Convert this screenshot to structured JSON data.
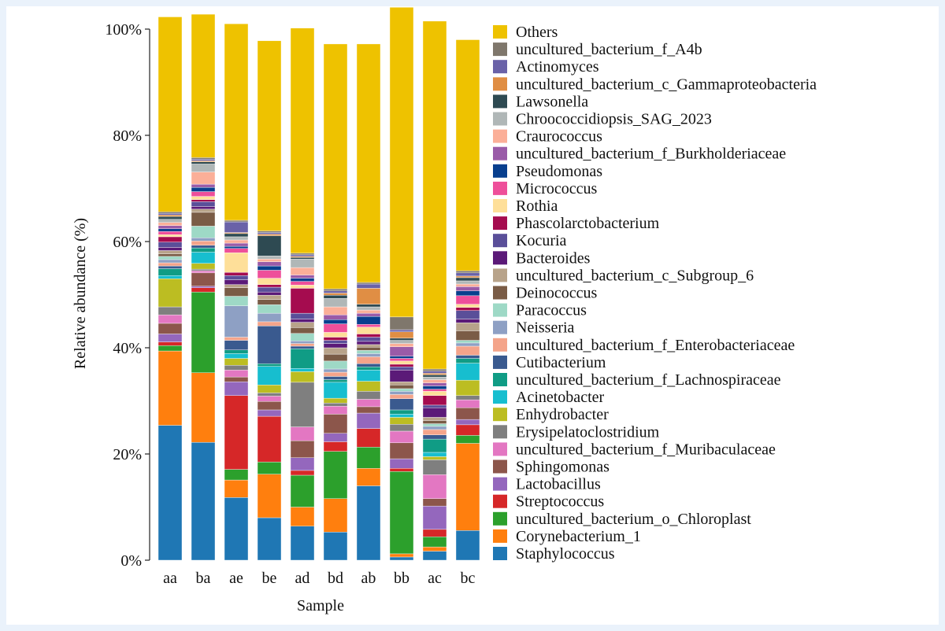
{
  "colors": {
    "Staphylococcus": "#1f77b4",
    "Corynebacterium_1": "#ff7f0e",
    "uncultured_bacterium_o_Chloroplast": "#2ca02c",
    "Streptococcus": "#d62728",
    "Lactobacillus": "#9467bd",
    "Sphingomonas": "#8c564b",
    "uncultured_bacterium_f_Muribaculaceae": "#e377c2",
    "Erysipelatoclostridium": "#7f7f7f",
    "Enhydrobacter": "#bcbd22",
    "Acinetobacter": "#17becf",
    "uncultured_bacterium_f_Lachnospiraceae": "#109c85",
    "Cutibacterium": "#3a5a8f",
    "uncultured_bacterium_f_Enterobacteriaceae": "#f4a48a",
    "Neisseria": "#8ea0c4",
    "Paracoccus": "#9ed9c6",
    "Deinococcus": "#7a5c46",
    "uncultured_bacterium_c_Subgroup_6": "#b8a38a",
    "Bacteroides": "#5b1a78",
    "Kocuria": "#5a4f99",
    "Phascolarctobacterium": "#a50c4f",
    "Rothia": "#fedf99",
    "Micrococcus": "#ee4f9a",
    "Pseudomonas": "#083f8e",
    "uncultured_bacterium_f_Burkholderiaceae": "#9a5ba8",
    "Craurococcus": "#fbaf98",
    "Chroococcidiopsis_SAG_2023": "#b0b7b7",
    "Lawsonella": "#2e4a52",
    "uncultured_bacterium_c_Gammaproteobacteria": "#e08e44",
    "Actinomyces": "#6a62a8",
    "uncultured_bacterium_f_A4b": "#7f776c",
    "Others": "#eec200"
  },
  "chart_data": {
    "type": "bar",
    "stacked": true,
    "xlabel": "Sample",
    "ylabel": "Relative abundance (%)",
    "ylim": [
      0,
      100
    ],
    "yticks": [
      "0%",
      "20%",
      "40%",
      "60%",
      "80%",
      "100%"
    ],
    "legend_position": "right",
    "categories": [
      "aa",
      "ba",
      "ae",
      "be",
      "ad",
      "bd",
      "ab",
      "bb",
      "ac",
      "bc"
    ],
    "series": [
      {
        "name": "Staphylococcus",
        "values": [
          25.4,
          22.2,
          11.8,
          8.0,
          6.4,
          5.3,
          14.0,
          0.6,
          1.7,
          5.6
        ]
      },
      {
        "name": "Corynebacterium_1",
        "values": [
          14.0,
          13.1,
          3.3,
          8.2,
          3.6,
          6.3,
          3.3,
          0.6,
          0.8,
          16.4
        ]
      },
      {
        "name": "uncultured_bacterium_o_Chloroplast",
        "values": [
          1.0,
          15.2,
          2.0,
          2.3,
          6.0,
          8.9,
          4.0,
          15.5,
          1.9,
          1.5
        ]
      },
      {
        "name": "Streptococcus",
        "values": [
          0.7,
          0.8,
          13.9,
          8.6,
          0.9,
          1.8,
          3.5,
          0.6,
          1.4,
          2.0
        ]
      },
      {
        "name": "Lactobacillus",
        "values": [
          1.5,
          0.3,
          2.6,
          1.2,
          2.4,
          1.6,
          2.9,
          1.8,
          4.4,
          1.0
        ]
      },
      {
        "name": "Sphingomonas",
        "values": [
          2.0,
          2.5,
          0.9,
          1.6,
          3.2,
          3.6,
          1.2,
          3.0,
          1.4,
          2.2
        ]
      },
      {
        "name": "uncultured_bacterium_f_Muribaculaceae",
        "values": [
          1.6,
          0.4,
          1.3,
          1.0,
          2.6,
          1.5,
          1.4,
          2.2,
          4.5,
          1.5
        ]
      },
      {
        "name": "Erysipelatoclostridium",
        "values": [
          1.5,
          0.3,
          0.9,
          0.6,
          8.4,
          0.6,
          1.5,
          1.3,
          2.8,
          0.8
        ]
      },
      {
        "name": "Enhydrobacter",
        "values": [
          5.3,
          1.1,
          1.3,
          1.5,
          2.0,
          0.9,
          1.9,
          1.3,
          0.6,
          2.9
        ]
      },
      {
        "name": "Acinetobacter",
        "values": [
          0.6,
          2.1,
          0.9,
          3.5,
          0.6,
          3.0,
          2.1,
          0.6,
          0.8,
          3.2
        ]
      },
      {
        "name": "uncultured_bacterium_f_Lachnospiraceae",
        "values": [
          1.3,
          0.8,
          0.7,
          0.5,
          3.7,
          0.5,
          0.6,
          0.8,
          2.5,
          0.9
        ]
      },
      {
        "name": "Cutibacterium",
        "values": [
          0.5,
          0.5,
          1.8,
          7.1,
          0.5,
          0.6,
          0.6,
          2.1,
          0.8,
          0.6
        ]
      },
      {
        "name": "uncultured_bacterium_f_Enterobacteriaceae",
        "values": [
          0.6,
          0.8,
          0.6,
          0.8,
          0.5,
          0.8,
          1.3,
          0.8,
          1.0,
          1.7
        ]
      },
      {
        "name": "Neisseria",
        "values": [
          0.6,
          0.6,
          5.9,
          1.6,
          0.5,
          0.6,
          0.6,
          0.6,
          0.6,
          0.6
        ]
      },
      {
        "name": "Paracoccus",
        "values": [
          0.6,
          2.2,
          1.8,
          1.6,
          1.4,
          1.5,
          0.6,
          0.5,
          0.5,
          0.5
        ]
      },
      {
        "name": "Deinococcus",
        "values": [
          0.5,
          2.6,
          1.6,
          1.0,
          1.1,
          1.3,
          0.6,
          0.7,
          0.6,
          1.8
        ]
      },
      {
        "name": "uncultured_bacterium_c_Subgroup_6",
        "values": [
          0.6,
          0.6,
          0.6,
          0.8,
          1.0,
          1.2,
          0.5,
          0.6,
          0.6,
          1.5
        ]
      },
      {
        "name": "Bacteroides",
        "values": [
          0.6,
          0.5,
          0.9,
          0.6,
          0.6,
          0.8,
          0.6,
          2.2,
          1.8,
          0.7
        ]
      },
      {
        "name": "Kocuria",
        "values": [
          1.0,
          0.9,
          0.8,
          0.9,
          1.1,
          0.6,
          0.8,
          0.6,
          0.5,
          1.6
        ]
      },
      {
        "name": "Phascolarctobacterium",
        "values": [
          1.0,
          0.4,
          0.6,
          0.5,
          4.7,
          0.6,
          0.6,
          0.5,
          1.8,
          0.6
        ]
      },
      {
        "name": "Rothia",
        "values": [
          0.4,
          0.6,
          3.7,
          1.2,
          0.6,
          0.9,
          1.3,
          0.6,
          0.8,
          0.6
        ]
      },
      {
        "name": "Micrococcus",
        "values": [
          0.6,
          0.9,
          0.8,
          1.5,
          0.7,
          1.6,
          0.5,
          0.5,
          0.4,
          1.6
        ]
      },
      {
        "name": "Pseudomonas",
        "values": [
          0.5,
          0.8,
          0.4,
          0.8,
          0.6,
          0.8,
          1.5,
          0.4,
          0.6,
          0.9
        ]
      },
      {
        "name": "uncultured_bacterium_f_Burkholderiaceae",
        "values": [
          0.6,
          0.6,
          0.6,
          0.8,
          0.6,
          0.9,
          0.6,
          1.8,
          0.6,
          0.8
        ]
      },
      {
        "name": "Craurococcus",
        "values": [
          0.6,
          2.3,
          0.6,
          0.5,
          1.4,
          1.5,
          0.6,
          0.6,
          0.6,
          0.5
        ]
      },
      {
        "name": "Chroococcidiopsis_SAG_2023",
        "values": [
          0.6,
          1.5,
          0.6,
          0.6,
          1.6,
          1.6,
          0.6,
          0.6,
          0.5,
          0.6
        ]
      },
      {
        "name": "Lawsonella",
        "values": [
          0.5,
          0.4,
          0.6,
          3.8,
          0.3,
          0.6,
          0.5,
          0.4,
          0.4,
          0.6
        ]
      },
      {
        "name": "uncultured_bacterium_c_Gammaproteobacteria",
        "values": [
          0.3,
          0.2,
          0.2,
          0.3,
          0.2,
          0.4,
          3.0,
          1.2,
          0.3,
          0.3
        ]
      },
      {
        "name": "Actinomyces",
        "values": [
          0.3,
          0.3,
          2.0,
          0.3,
          0.3,
          0.4,
          0.8,
          0.4,
          0.4,
          0.6
        ]
      },
      {
        "name": "uncultured_bacterium_f_A4b",
        "values": [
          0.3,
          0.3,
          0.3,
          0.3,
          0.3,
          0.4,
          0.3,
          2.4,
          0.4,
          0.4
        ]
      },
      {
        "name": "Others",
        "values": [
          36.7,
          27.0,
          37.0,
          35.8,
          42.4,
          46.1,
          44.9,
          58.3,
          65.5,
          43.5
        ]
      }
    ]
  }
}
